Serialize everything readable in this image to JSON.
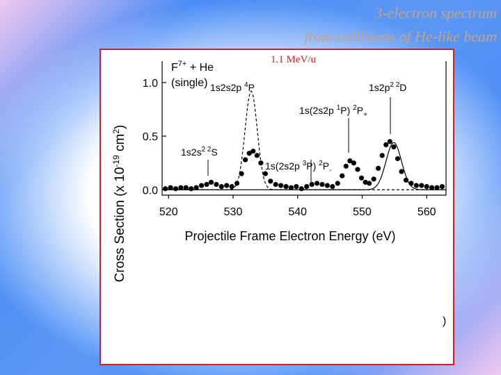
{
  "slide": {
    "title_line1": "3-electron spectrum",
    "title_line2": "from collisions of He-like beam"
  },
  "energy_note": "1.1 MeV/u",
  "stray_glyph": ")",
  "colors": {
    "frame": "#c8202c",
    "title": "#c9a088",
    "curves": "#000000"
  },
  "chart_data": {
    "type": "scatter",
    "legend_label": "F7+ + He (single)",
    "xlabel": "Projectile Frame Electron Energy (eV)",
    "ylabel": "Cross Section (x 10-19 cm2)",
    "xlim": [
      519,
      563
    ],
    "ylim": [
      -0.05,
      1.2
    ],
    "x_ticks": [
      520,
      530,
      540,
      550,
      560
    ],
    "y_ticks": [
      0.0,
      0.5,
      1.0
    ],
    "peaks": [
      {
        "label": "1s2s² ²S",
        "x": 526.7
      },
      {
        "label": "1s2s2p ⁴P",
        "x": 532.8
      },
      {
        "label": "1s(2s2p ³P) ²P₋",
        "x": 542.6
      },
      {
        "label": "1s(2s2p ¹P) ²P₊",
        "x": 548.2
      },
      {
        "label": "1s2p² ²D",
        "x": 554.9
      }
    ],
    "series": [
      {
        "style": "markers",
        "x": [
          519.5,
          520.3,
          521.1,
          521.9,
          522.7,
          523.5,
          524.3,
          525.1,
          525.9,
          526.6,
          527.4,
          528.2,
          529.0,
          529.8,
          530.6,
          531.3,
          531.9,
          532.5,
          533.1,
          533.7,
          534.3,
          535.0,
          535.8,
          536.6,
          537.4,
          538.2,
          539.0,
          539.8,
          540.6,
          541.4,
          542.2,
          543.0,
          543.8,
          544.6,
          545.4,
          546.2,
          546.9,
          547.5,
          548.1,
          548.7,
          549.3,
          549.9,
          550.5,
          551.1,
          551.8,
          552.5,
          553.1,
          553.7,
          554.3,
          554.9,
          555.5,
          556.1,
          556.8,
          557.6,
          558.4,
          559.2,
          560.0,
          560.8,
          561.6,
          562.4
        ],
        "y": [
          0.01,
          0.02,
          0.01,
          0.02,
          0.02,
          0.01,
          0.02,
          0.04,
          0.05,
          0.07,
          0.05,
          0.03,
          0.04,
          0.03,
          0.06,
          0.15,
          0.28,
          0.34,
          0.36,
          0.32,
          0.25,
          0.15,
          0.08,
          0.05,
          0.04,
          0.03,
          0.02,
          0.03,
          0.01,
          0.03,
          0.05,
          0.06,
          0.05,
          0.04,
          0.03,
          0.06,
          0.13,
          0.22,
          0.27,
          0.25,
          0.19,
          0.11,
          0.07,
          0.06,
          0.1,
          0.2,
          0.32,
          0.42,
          0.45,
          0.4,
          0.29,
          0.17,
          0.09,
          0.06,
          0.04,
          0.04,
          0.03,
          0.02,
          0.02,
          0.03
        ]
      },
      {
        "style": "dashed",
        "peak_x": 532.8,
        "peak_y": 0.92,
        "sigma": 0.95
      },
      {
        "style": "solid",
        "peak_x": 554.9,
        "peak_y": 0.44,
        "sigma": 1.2
      }
    ]
  }
}
